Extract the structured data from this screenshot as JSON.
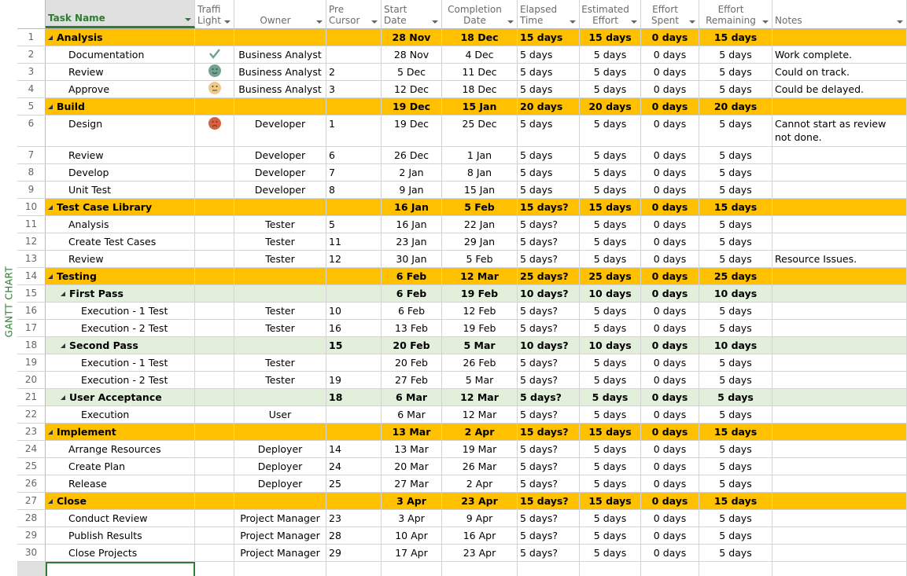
{
  "side_label": "GANTT CHART",
  "colors": {
    "summary": "#FFC000",
    "subsummary": "#E2EFDA",
    "accent": "#2E7D32",
    "on_track": "#6FA58F",
    "delayed": "#F0C987",
    "late": "#D9603F"
  },
  "columns": [
    {
      "key": "task",
      "label": "Task Name"
    },
    {
      "key": "light",
      "label": "Traffi Light"
    },
    {
      "key": "owner",
      "label": "Owner"
    },
    {
      "key": "pre",
      "label": "Pre Cursor"
    },
    {
      "key": "start",
      "label": "Start Date"
    },
    {
      "key": "end",
      "label": "Completion Date"
    },
    {
      "key": "elapsed",
      "label": "Elapsed Time"
    },
    {
      "key": "est",
      "label": "Estimated Effort"
    },
    {
      "key": "spent",
      "label": "Effort Spent"
    },
    {
      "key": "rem",
      "label": "Effort Remaining"
    },
    {
      "key": "notes",
      "label": "Notes"
    }
  ],
  "rows": [
    {
      "n": "1",
      "type": "summary",
      "level": 1,
      "task": "Analysis",
      "light": "",
      "owner": "",
      "pre": "",
      "start": "28 Nov",
      "end": "18 Dec",
      "elapsed": "15 days",
      "est": "15 days",
      "spent": "0 days",
      "rem": "15 days",
      "notes": ""
    },
    {
      "n": "2",
      "type": "task",
      "level": 2,
      "task": "Documentation",
      "light": "check-icon",
      "owner": "Business Analyst",
      "pre": "",
      "start": "28 Nov",
      "end": "4 Dec",
      "elapsed": "5 days",
      "est": "5 days",
      "spent": "0 days",
      "rem": "5 days",
      "notes": "Work complete."
    },
    {
      "n": "3",
      "type": "task",
      "level": 2,
      "task": "Review",
      "light": "smiley-happy-icon",
      "owner": "Business Analyst",
      "pre": "2",
      "start": "5 Dec",
      "end": "11 Dec",
      "elapsed": "5 days",
      "est": "5 days",
      "spent": "0 days",
      "rem": "5 days",
      "notes": "Could on track."
    },
    {
      "n": "4",
      "type": "task",
      "level": 2,
      "task": "Approve",
      "light": "smiley-neutral-icon",
      "owner": "Business Analyst",
      "pre": "3",
      "start": "12 Dec",
      "end": "18 Dec",
      "elapsed": "5 days",
      "est": "5 days",
      "spent": "0 days",
      "rem": "5 days",
      "notes": "Could be delayed."
    },
    {
      "n": "5",
      "type": "summary",
      "level": 1,
      "task": "Build",
      "light": "",
      "owner": "",
      "pre": "",
      "start": "19 Dec",
      "end": "15 Jan",
      "elapsed": "20 days",
      "est": "20 days",
      "spent": "0 days",
      "rem": "20 days",
      "notes": ""
    },
    {
      "n": "6",
      "type": "task",
      "level": 2,
      "tall": true,
      "task": "Design",
      "light": "smiley-sad-icon",
      "owner": "Developer",
      "pre": "1",
      "start": "19 Dec",
      "end": "25 Dec",
      "elapsed": "5 days",
      "est": "5 days",
      "spent": "0 days",
      "rem": "5 days",
      "notes": "Cannot start as review not done."
    },
    {
      "n": "7",
      "type": "task",
      "level": 2,
      "task": "Review",
      "light": "",
      "owner": "Developer",
      "pre": "6",
      "start": "26 Dec",
      "end": "1 Jan",
      "elapsed": "5 days",
      "est": "5 days",
      "spent": "0 days",
      "rem": "5 days",
      "notes": ""
    },
    {
      "n": "8",
      "type": "task",
      "level": 2,
      "task": "Develop",
      "light": "",
      "owner": "Developer",
      "pre": "7",
      "start": "2 Jan",
      "end": "8 Jan",
      "elapsed": "5 days",
      "est": "5 days",
      "spent": "0 days",
      "rem": "5 days",
      "notes": ""
    },
    {
      "n": "9",
      "type": "task",
      "level": 2,
      "task": "Unit Test",
      "light": "",
      "owner": "Developer",
      "pre": "8",
      "start": "9 Jan",
      "end": "15 Jan",
      "elapsed": "5 days",
      "est": "5 days",
      "spent": "0 days",
      "rem": "5 days",
      "notes": ""
    },
    {
      "n": "10",
      "type": "summary",
      "level": 1,
      "task": "Test Case Library",
      "light": "",
      "owner": "",
      "pre": "",
      "start": "16 Jan",
      "end": "5 Feb",
      "elapsed": "15 days?",
      "est": "15 days",
      "spent": "0 days",
      "rem": "15 days",
      "notes": ""
    },
    {
      "n": "11",
      "type": "task",
      "level": 2,
      "task": "Analysis",
      "light": "",
      "owner": "Tester",
      "pre": "5",
      "start": "16 Jan",
      "end": "22 Jan",
      "elapsed": "5 days?",
      "est": "5 days",
      "spent": "0 days",
      "rem": "5 days",
      "notes": ""
    },
    {
      "n": "12",
      "type": "task",
      "level": 2,
      "task": "Create Test Cases",
      "light": "",
      "owner": "Tester",
      "pre": "11",
      "start": "23 Jan",
      "end": "29 Jan",
      "elapsed": "5 days?",
      "est": "5 days",
      "spent": "0 days",
      "rem": "5 days",
      "notes": ""
    },
    {
      "n": "13",
      "type": "task",
      "level": 2,
      "task": "Review",
      "light": "",
      "owner": "Tester",
      "pre": "12",
      "start": "30 Jan",
      "end": "5 Feb",
      "elapsed": "5 days?",
      "est": "5 days",
      "spent": "0 days",
      "rem": "5 days",
      "notes": "Resource Issues."
    },
    {
      "n": "14",
      "type": "summary",
      "level": 1,
      "task": "Testing",
      "light": "",
      "owner": "",
      "pre": "",
      "start": "6 Feb",
      "end": "12 Mar",
      "elapsed": "25 days?",
      "est": "25 days",
      "spent": "0 days",
      "rem": "25 days",
      "notes": ""
    },
    {
      "n": "15",
      "type": "sub",
      "level": 2,
      "task": "First Pass",
      "light": "",
      "owner": "",
      "pre": "",
      "start": "6 Feb",
      "end": "19 Feb",
      "elapsed": "10 days?",
      "est": "10 days",
      "spent": "0 days",
      "rem": "10 days",
      "notes": ""
    },
    {
      "n": "16",
      "type": "task",
      "level": 3,
      "task": "Execution - 1 Test",
      "light": "",
      "owner": "Tester",
      "pre": "10",
      "start": "6 Feb",
      "end": "12 Feb",
      "elapsed": "5 days?",
      "est": "5 days",
      "spent": "0 days",
      "rem": "5 days",
      "notes": ""
    },
    {
      "n": "17",
      "type": "task",
      "level": 3,
      "task": "Execution - 2 Test",
      "light": "",
      "owner": "Tester",
      "pre": "16",
      "start": "13 Feb",
      "end": "19 Feb",
      "elapsed": "5 days?",
      "est": "5 days",
      "spent": "0 days",
      "rem": "5 days",
      "notes": ""
    },
    {
      "n": "18",
      "type": "sub",
      "level": 2,
      "task": "Second Pass",
      "light": "",
      "owner": "",
      "pre": "15",
      "start": "20 Feb",
      "end": "5 Mar",
      "elapsed": "10 days?",
      "est": "10 days",
      "spent": "0 days",
      "rem": "10 days",
      "notes": ""
    },
    {
      "n": "19",
      "type": "task",
      "level": 3,
      "task": "Execution - 1 Test",
      "light": "",
      "owner": "Tester",
      "pre": "",
      "start": "20 Feb",
      "end": "26 Feb",
      "elapsed": "5 days?",
      "est": "5 days",
      "spent": "0 days",
      "rem": "5 days",
      "notes": ""
    },
    {
      "n": "20",
      "type": "task",
      "level": 3,
      "task": "Execution - 2 Test",
      "light": "",
      "owner": "Tester",
      "pre": "19",
      "start": "27 Feb",
      "end": "5 Mar",
      "elapsed": "5 days?",
      "est": "5 days",
      "spent": "0 days",
      "rem": "5 days",
      "notes": ""
    },
    {
      "n": "21",
      "type": "sub",
      "level": 2,
      "task": "User Acceptance",
      "light": "",
      "owner": "",
      "pre": "18",
      "start": "6 Mar",
      "end": "12 Mar",
      "elapsed": "5 days?",
      "est": "5 days",
      "spent": "0 days",
      "rem": "5 days",
      "notes": ""
    },
    {
      "n": "22",
      "type": "task",
      "level": 3,
      "task": "Execution",
      "light": "",
      "owner": "User",
      "pre": "",
      "start": "6 Mar",
      "end": "12 Mar",
      "elapsed": "5 days?",
      "est": "5 days",
      "spent": "0 days",
      "rem": "5 days",
      "notes": ""
    },
    {
      "n": "23",
      "type": "summary",
      "level": 1,
      "task": "Implement",
      "light": "",
      "owner": "",
      "pre": "",
      "start": "13 Mar",
      "end": "2 Apr",
      "elapsed": "15 days?",
      "est": "15 days",
      "spent": "0 days",
      "rem": "15 days",
      "notes": ""
    },
    {
      "n": "24",
      "type": "task",
      "level": 2,
      "task": "Arrange Resources",
      "light": "",
      "owner": "Deployer",
      "pre": "14",
      "start": "13 Mar",
      "end": "19 Mar",
      "elapsed": "5 days?",
      "est": "5 days",
      "spent": "0 days",
      "rem": "5 days",
      "notes": ""
    },
    {
      "n": "25",
      "type": "task",
      "level": 2,
      "task": "Create Plan",
      "light": "",
      "owner": "Deployer",
      "pre": "24",
      "start": "20 Mar",
      "end": "26 Mar",
      "elapsed": "5 days?",
      "est": "5 days",
      "spent": "0 days",
      "rem": "5 days",
      "notes": ""
    },
    {
      "n": "26",
      "type": "task",
      "level": 2,
      "task": "Release",
      "light": "",
      "owner": "Deployer",
      "pre": "25",
      "start": "27 Mar",
      "end": "2 Apr",
      "elapsed": "5 days?",
      "est": "5 days",
      "spent": "0 days",
      "rem": "5 days",
      "notes": ""
    },
    {
      "n": "27",
      "type": "summary",
      "level": 1,
      "task": "Close",
      "light": "",
      "owner": "",
      "pre": "",
      "start": "3 Apr",
      "end": "23 Apr",
      "elapsed": "15 days?",
      "est": "15 days",
      "spent": "0 days",
      "rem": "15 days",
      "notes": ""
    },
    {
      "n": "28",
      "type": "task",
      "level": 2,
      "task": "Conduct Review",
      "light": "",
      "owner": "Project Manager",
      "pre": "23",
      "start": "3 Apr",
      "end": "9 Apr",
      "elapsed": "5 days?",
      "est": "5 days",
      "spent": "0 days",
      "rem": "5 days",
      "notes": ""
    },
    {
      "n": "29",
      "type": "task",
      "level": 2,
      "task": "Publish Results",
      "light": "",
      "owner": "Project Manager",
      "pre": "28",
      "start": "10 Apr",
      "end": "16 Apr",
      "elapsed": "5 days?",
      "est": "5 days",
      "spent": "0 days",
      "rem": "5 days",
      "notes": ""
    },
    {
      "n": "30",
      "type": "task",
      "level": 2,
      "task": "Close Projects",
      "light": "",
      "owner": "Project Manager",
      "pre": "29",
      "start": "17 Apr",
      "end": "23 Apr",
      "elapsed": "5 days?",
      "est": "5 days",
      "spent": "0 days",
      "rem": "5 days",
      "notes": ""
    }
  ]
}
